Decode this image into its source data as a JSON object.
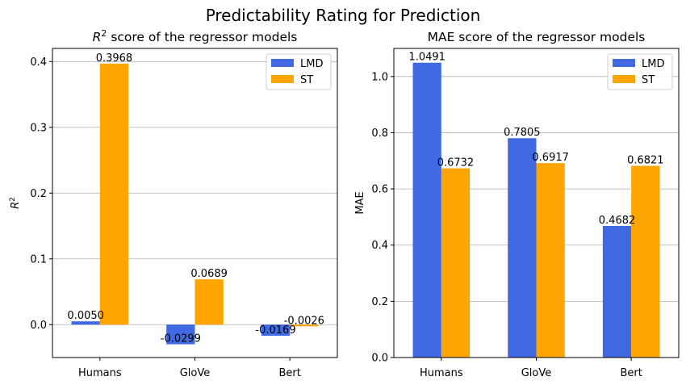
{
  "suptitle": "Predictability Rating for Prediction",
  "colors": {
    "lmd": "#4169E1",
    "st": "#FFA500"
  },
  "chart_data": [
    {
      "type": "bar",
      "title_prefix": "R",
      "title_sup": "2",
      "title_rest": " score of the regressor models",
      "ylabel": "R",
      "ylabel_sup": "2",
      "xlabel": "",
      "categories": [
        "Humans",
        "GloVe",
        "Bert"
      ],
      "series": [
        {
          "name": "LMD",
          "values": [
            0.005,
            -0.0299,
            -0.0169
          ],
          "labels": [
            "0.0050",
            "-0.0299",
            "-0.0169"
          ]
        },
        {
          "name": "ST",
          "values": [
            0.3968,
            0.0689,
            -0.0026
          ],
          "labels": [
            "0.3968",
            "0.0689",
            "-0.0026"
          ]
        }
      ],
      "ylim": [
        -0.05,
        0.42
      ],
      "yticks": [
        0.0,
        0.1,
        0.2,
        0.3,
        0.4
      ],
      "ytick_labels": [
        "0.0",
        "0.1",
        "0.2",
        "0.3",
        "0.4"
      ],
      "grid": "y",
      "legend": "top-right"
    },
    {
      "type": "bar",
      "title_prefix": "",
      "title_sup": "",
      "title_rest": "MAE score of the regressor models",
      "ylabel": "MAE",
      "ylabel_sup": "",
      "xlabel": "",
      "categories": [
        "Humans",
        "GloVe",
        "Bert"
      ],
      "series": [
        {
          "name": "LMD",
          "values": [
            1.0491,
            0.7805,
            0.4682
          ],
          "labels": [
            "1.0491",
            "0.7805",
            "0.4682"
          ]
        },
        {
          "name": "ST",
          "values": [
            0.6732,
            0.6917,
            0.6821
          ],
          "labels": [
            "0.6732",
            "0.6917",
            "0.6821"
          ]
        }
      ],
      "ylim": [
        0.0,
        1.1
      ],
      "yticks": [
        0.0,
        0.2,
        0.4,
        0.6,
        0.8,
        1.0
      ],
      "ytick_labels": [
        "0.0",
        "0.2",
        "0.4",
        "0.6",
        "0.8",
        "1.0"
      ],
      "grid": "y",
      "legend": "top-right"
    }
  ]
}
